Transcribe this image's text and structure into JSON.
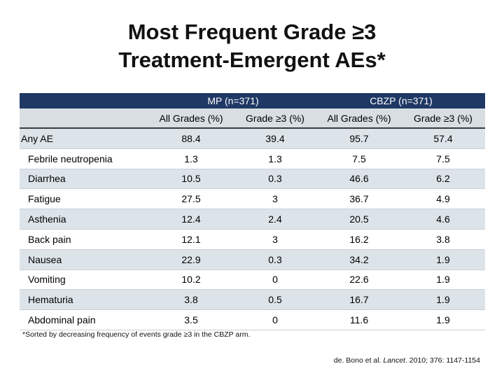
{
  "title": {
    "line1": "Most Frequent Grade ≥3",
    "line2": "Treatment-Emergent AEs*"
  },
  "table": {
    "groups": [
      "MP (n=371)",
      "CBZP (n=371)"
    ],
    "subheaders": [
      "All Grades (%)",
      "Grade ≥3 (%)",
      "All Grades (%)",
      "Grade ≥3 (%)"
    ],
    "rows": [
      {
        "label": "Any AE",
        "values": [
          "88.4",
          "39.4",
          "95.7",
          "57.4"
        ]
      },
      {
        "label": "Febrile neutropenia",
        "values": [
          "1.3",
          "1.3",
          "7.5",
          "7.5"
        ]
      },
      {
        "label": "Diarrhea",
        "values": [
          "10.5",
          "0.3",
          "46.6",
          "6.2"
        ]
      },
      {
        "label": "Fatigue",
        "values": [
          "27.5",
          "3",
          "36.7",
          "4.9"
        ]
      },
      {
        "label": "Asthenia",
        "values": [
          "12.4",
          "2.4",
          "20.5",
          "4.6"
        ]
      },
      {
        "label": "Back pain",
        "values": [
          "12.1",
          "3",
          "16.2",
          "3.8"
        ]
      },
      {
        "label": "Nausea",
        "values": [
          "22.9",
          "0.3",
          "34.2",
          "1.9"
        ]
      },
      {
        "label": "Vomiting",
        "values": [
          "10.2",
          "0",
          "22.6",
          "1.9"
        ]
      },
      {
        "label": "Hematuria",
        "values": [
          "3.8",
          "0.5",
          "16.7",
          "1.9"
        ]
      },
      {
        "label": "Abdominal pain",
        "values": [
          "3.5",
          "0",
          "11.6",
          "1.9"
        ]
      }
    ]
  },
  "footnote": "*Sorted by decreasing frequency of events grade ≥3 in the CBZP arm.",
  "citation": {
    "authors": "de. Bono et al.",
    "journal": "Lancet",
    "details": ". 2010; 376: 1147-1154"
  },
  "colors": {
    "header_dark": "#1f3864",
    "header_light": "#d9dee2",
    "row_stripe": "#dce4ea"
  }
}
